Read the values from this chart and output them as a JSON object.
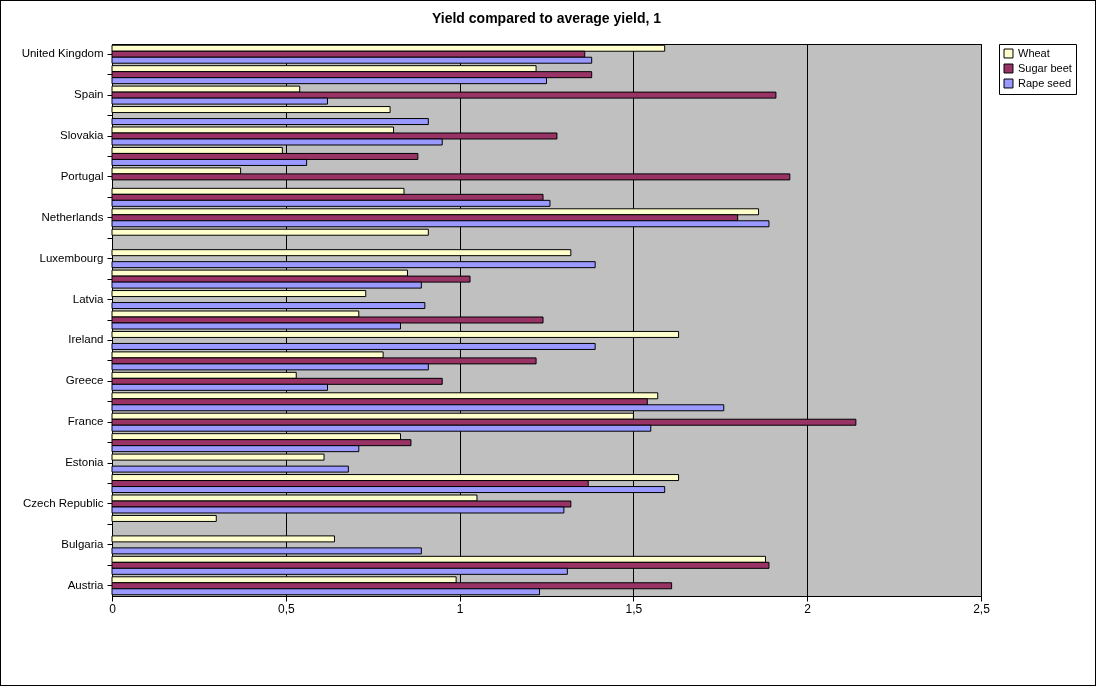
{
  "chart_data": {
    "type": "bar",
    "orientation": "horizontal",
    "title": "Yield compared to average yield, 1",
    "categories": [
      "United Kingdom",
      null,
      "Spain",
      null,
      "Slovakia",
      null,
      "Portugal",
      null,
      "Netherlands",
      null,
      "Luxembourg",
      null,
      "Latvia",
      null,
      "Ireland",
      null,
      "Greece",
      null,
      "France",
      null,
      "Estonia",
      null,
      "Czech Republic",
      null,
      "Bulgaria",
      null,
      "Austria"
    ],
    "series": [
      {
        "name": "Wheat",
        "color": "#ffffcc",
        "values": [
          1.59,
          1.22,
          0.54,
          0.8,
          0.81,
          0.49,
          0.37,
          0.84,
          1.86,
          0.91,
          1.32,
          0.85,
          0.73,
          0.71,
          1.63,
          0.78,
          0.53,
          1.57,
          1.5,
          0.83,
          0.61,
          1.63,
          1.05,
          0.3,
          0.64,
          1.88,
          0.99
        ]
      },
      {
        "name": "Sugar beet",
        "color": "#993366",
        "values": [
          1.36,
          1.38,
          1.91,
          null,
          1.28,
          0.88,
          1.95,
          1.24,
          1.8,
          null,
          null,
          1.03,
          null,
          1.24,
          null,
          1.22,
          0.95,
          1.54,
          2.14,
          0.86,
          null,
          1.37,
          1.32,
          null,
          null,
          1.89,
          1.61
        ]
      },
      {
        "name": "Rape seed",
        "color": "#9999ff",
        "values": [
          1.38,
          1.25,
          0.62,
          0.91,
          0.95,
          0.56,
          null,
          1.26,
          1.89,
          null,
          1.39,
          0.89,
          0.9,
          0.83,
          1.39,
          0.91,
          0.62,
          1.76,
          1.55,
          0.71,
          0.68,
          1.59,
          1.3,
          null,
          0.89,
          1.31,
          1.23
        ]
      }
    ],
    "xlim": [
      0,
      2.5
    ],
    "xticks": [
      0,
      {
        "value": 0.5,
        "label": "0,5"
      },
      1,
      {
        "value": 1.5,
        "label": "1,5"
      },
      2,
      {
        "value": 2.5,
        "label": "2,5"
      }
    ],
    "grid": "x",
    "legend": "right"
  }
}
